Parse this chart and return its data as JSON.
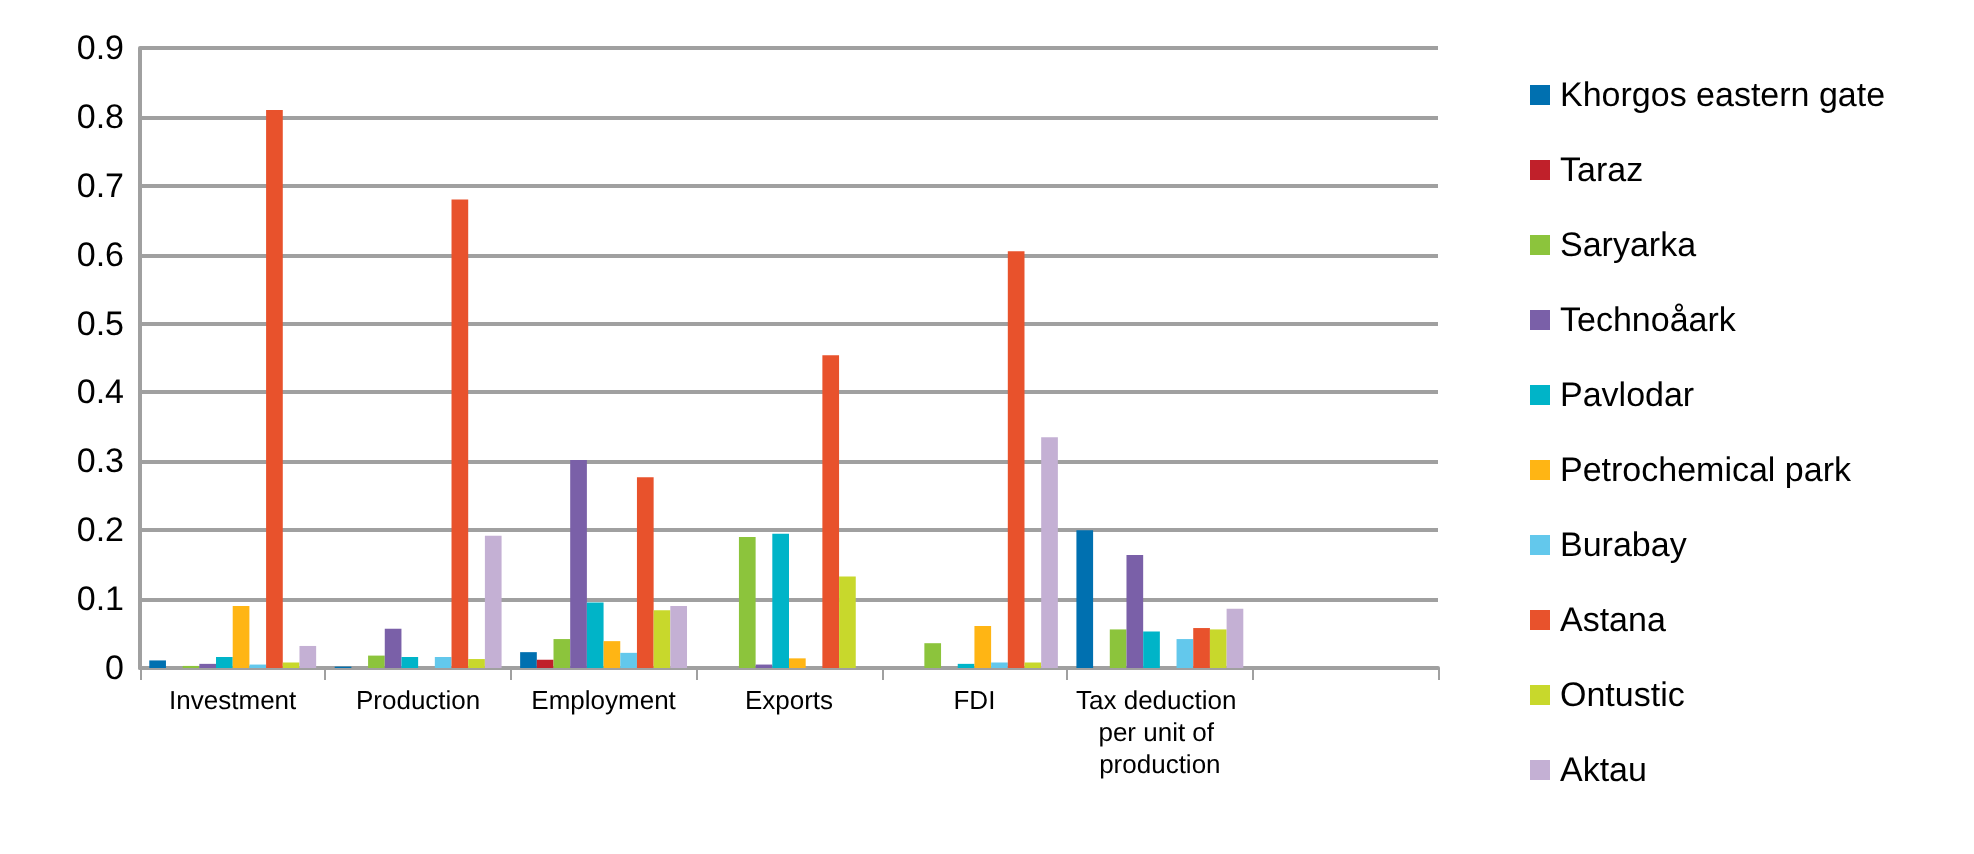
{
  "chart_data": {
    "type": "bar",
    "categories": [
      "Investment",
      "Production",
      "Employment",
      "Exports",
      "FDI",
      "Tax deduction per unit of production",
      null
    ],
    "ylim": [
      0,
      0.9
    ],
    "yticks": [
      0,
      0.1,
      0.2,
      0.3,
      0.4,
      0.5,
      0.6,
      0.7,
      0.8,
      0.9
    ],
    "grid": "y",
    "legend": "right",
    "series": [
      {
        "name": "Khorgos eastern gate",
        "color": "#0070b0",
        "values": [
          0.011,
          0.002,
          0.023,
          null,
          null,
          0.2,
          null
        ]
      },
      {
        "name": "Taraz",
        "color": "#c0202a",
        "values": [
          null,
          null,
          0.012,
          null,
          null,
          null,
          null
        ]
      },
      {
        "name": "Saryarka",
        "color": "#8cc43c",
        "values": [
          0.003,
          0.018,
          0.042,
          0.19,
          0.036,
          0.056,
          null
        ]
      },
      {
        "name": "Technoåark",
        "color": "#7a60a8",
        "values": [
          0.006,
          0.057,
          0.302,
          0.005,
          null,
          0.164,
          null
        ]
      },
      {
        "name": "Pavlodar",
        "color": "#00b4c8",
        "values": [
          0.016,
          0.016,
          0.095,
          0.195,
          0.006,
          0.053,
          null
        ]
      },
      {
        "name": "Petrochemical park",
        "color": "#ffb514",
        "values": [
          0.09,
          null,
          0.039,
          0.014,
          0.061,
          null,
          null
        ]
      },
      {
        "name": "Burabay",
        "color": "#63c8ec",
        "values": [
          0.005,
          0.016,
          0.022,
          null,
          0.008,
          0.042,
          null
        ]
      },
      {
        "name": "Astana",
        "color": "#e8522c",
        "values": [
          0.81,
          0.68,
          0.277,
          0.454,
          0.605,
          0.058,
          null
        ]
      },
      {
        "name": "Ontustic",
        "color": "#c8d82c",
        "values": [
          0.008,
          0.013,
          0.084,
          0.133,
          0.008,
          0.056,
          null
        ]
      },
      {
        "name": "Aktau",
        "color": "#c4b0d4",
        "values": [
          0.032,
          0.192,
          0.09,
          null,
          0.335,
          0.086,
          null
        ]
      }
    ]
  }
}
